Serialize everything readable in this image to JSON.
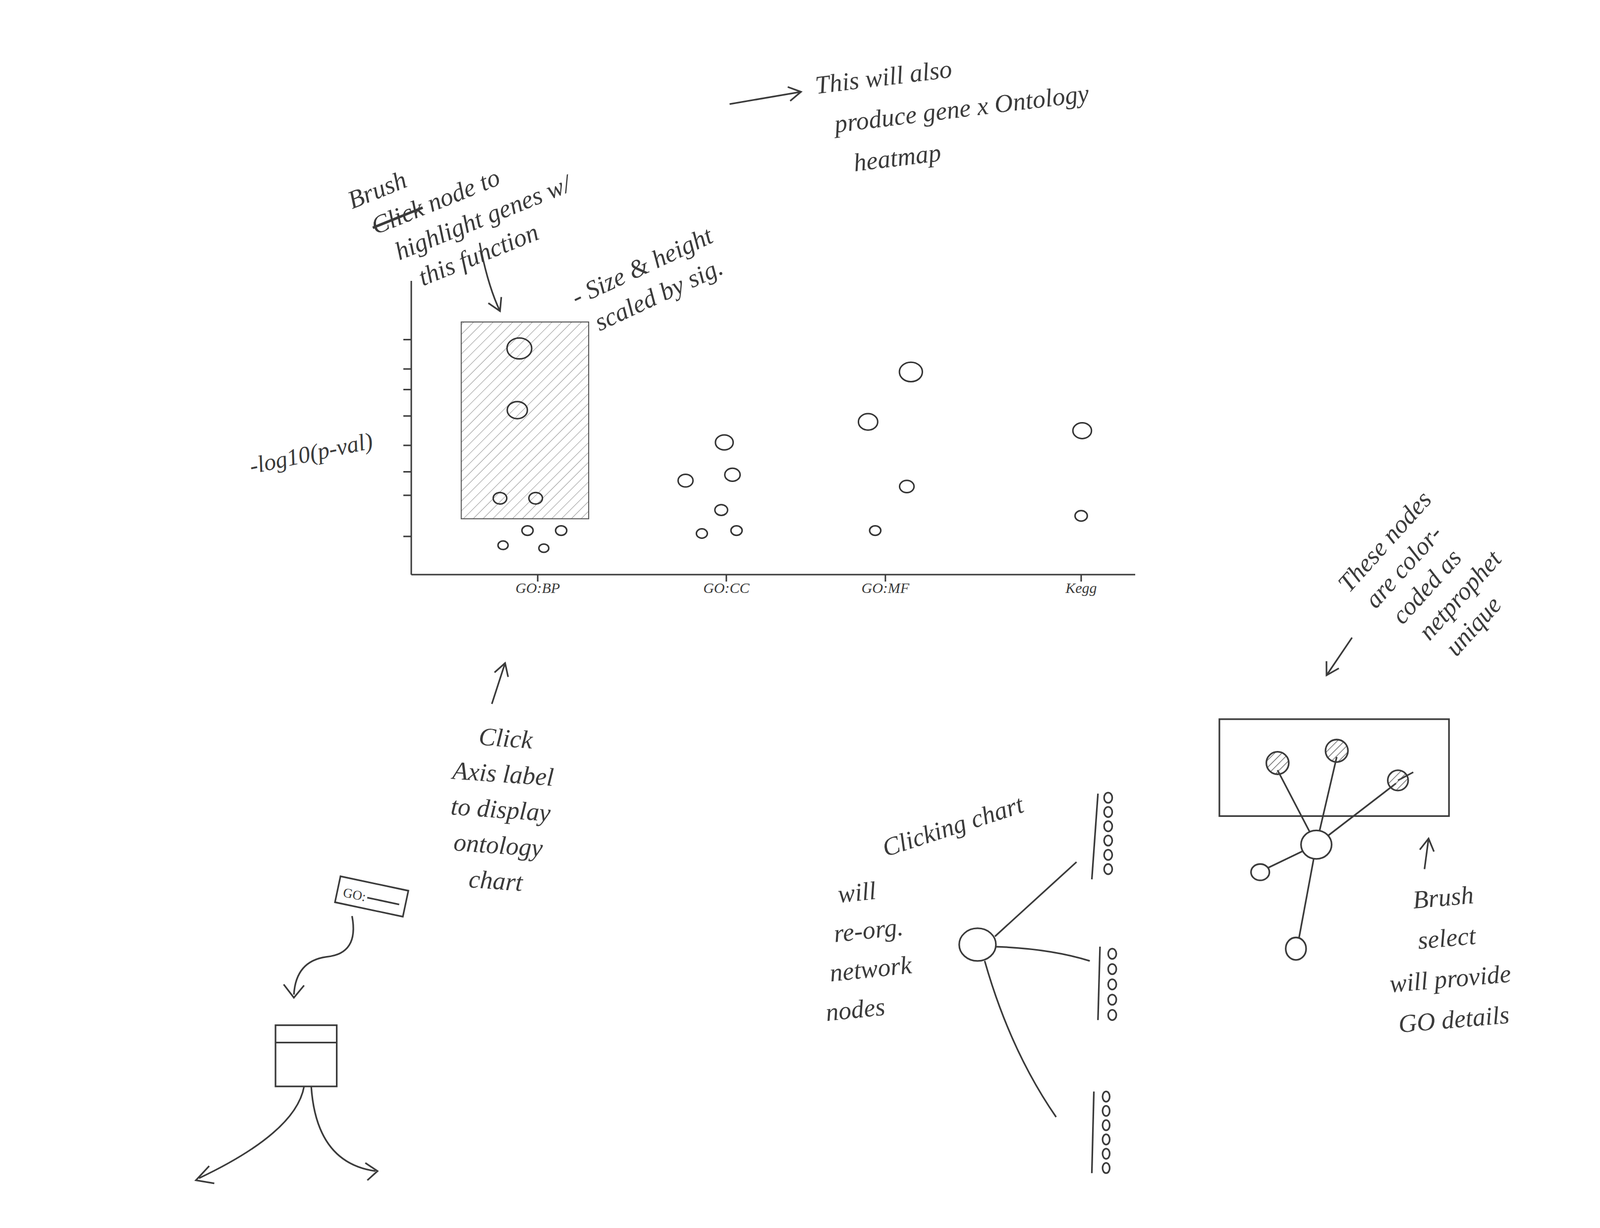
{
  "chart_data": {
    "type": "scatter",
    "ylabel": "-log10(p-val)",
    "xlim": [
      0,
      7.1
    ],
    "xticks": [
      {
        "value": 1.24,
        "label": "GO:BP"
      },
      {
        "value": 3.09,
        "label": "GO:CC"
      },
      {
        "value": 4.65,
        "label": "GO:MF"
      },
      {
        "value": 6.57,
        "label": "Kegg"
      }
    ],
    "ylim": [
      0,
      10
    ],
    "yticks": [
      1.3,
      2.7,
      3.5,
      4.4,
      5.4,
      6.3,
      7.0,
      8.0
    ],
    "tick_labels": "x",
    "color": "#333333",
    "marker": "circle",
    "x": [
      1.06,
      1.04,
      0.87,
      1.22,
      0.9,
      1.14,
      1.3,
      1.47,
      3.07,
      2.69,
      3.15,
      3.04,
      2.85,
      3.19,
      4.9,
      4.48,
      4.86,
      4.55,
      6.58,
      6.57
    ],
    "values": [
      7.7,
      5.6,
      2.6,
      2.6,
      1.0,
      1.5,
      0.9,
      1.5,
      4.5,
      3.2,
      3.4,
      2.2,
      1.4,
      1.5,
      6.9,
      5.2,
      3.0,
      1.5,
      4.9,
      2.0
    ],
    "brush": {
      "x": [
        0.49,
        1.74
      ],
      "y": [
        1.9,
        8.6
      ]
    }
  },
  "annotations": {
    "brush_node": {
      "struck": "Click",
      "lines": [
        "Brush",
        "node to",
        "highlight genes w/",
        "this function"
      ]
    },
    "heatmap": {
      "lines": [
        "This will also",
        "produce gene x Ontology",
        "heatmap"
      ]
    },
    "size": {
      "lines": [
        "- Size & height",
        "scaled by sig."
      ]
    },
    "axis_click": {
      "lines": [
        "Click",
        "Axis label",
        "to display",
        "ontology",
        "chart"
      ]
    },
    "reorg": {
      "lines": [
        "Clicking chart",
        "will",
        "re-org.",
        "network",
        "nodes"
      ]
    },
    "color_coded": {
      "lines": [
        "These nodes",
        "are color-",
        "coded as",
        "netprophet",
        "unique"
      ]
    },
    "brush_select": {
      "lines": [
        "Brush",
        "select",
        "will provide",
        "GO details"
      ]
    },
    "icon": {
      "label": "GO:"
    }
  }
}
